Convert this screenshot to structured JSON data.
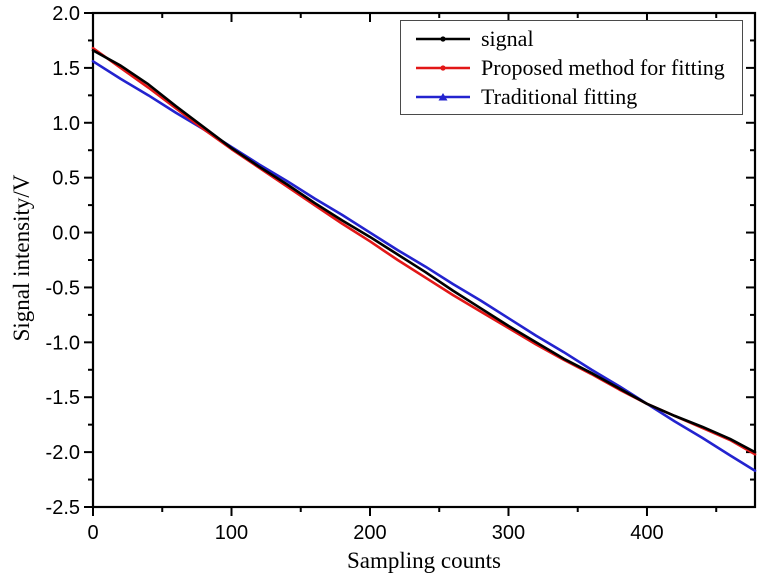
{
  "figure": {
    "background": "#ffffff",
    "axis_color": "#000000",
    "legend_border_color": "#4a4a4a"
  },
  "chart_data": {
    "type": "line",
    "title": "",
    "xlabel": "Sampling counts",
    "ylabel": "Signal intensity/V",
    "xlim": [
      0,
      478
    ],
    "ylim": [
      -2.5,
      2.0
    ],
    "grid": false,
    "legend_position": "top-right",
    "x_major_ticks": [
      0,
      100,
      200,
      300,
      400
    ],
    "x_tick_labels": [
      "0",
      "100",
      "200",
      "300",
      "400"
    ],
    "x_minor_ticks": [
      50,
      150,
      250,
      350,
      450
    ],
    "y_major_ticks": [
      2.0,
      1.5,
      1.0,
      0.5,
      0.0,
      -0.5,
      -1.0,
      -1.5,
      -2.0,
      -2.5
    ],
    "y_tick_labels": [
      "2.0",
      "1.5",
      "1.0",
      "0.5",
      "0.0",
      "-0.5",
      "-1.0",
      "-1.5",
      "-2.0",
      "-2.5"
    ],
    "y_minor_ticks": [
      1.75,
      1.25,
      0.75,
      0.25,
      -0.25,
      -0.75,
      -1.25,
      -1.75,
      -2.25
    ],
    "x": [
      0,
      20,
      40,
      60,
      80,
      100,
      120,
      140,
      160,
      180,
      200,
      220,
      240,
      260,
      280,
      300,
      320,
      340,
      360,
      380,
      400,
      420,
      440,
      460,
      478
    ],
    "series": [
      {
        "name": "signal",
        "color": "#000000",
        "marker": "circle",
        "values": [
          1.66,
          1.52,
          1.35,
          1.15,
          0.96,
          0.77,
          0.6,
          0.44,
          0.27,
          0.11,
          -0.04,
          -0.2,
          -0.36,
          -0.53,
          -0.69,
          -0.85,
          -1.0,
          -1.15,
          -1.28,
          -1.42,
          -1.56,
          -1.67,
          -1.77,
          -1.88,
          -2.0
        ]
      },
      {
        "name": "Proposed method for fitting",
        "color": "#e21717",
        "marker": "circle",
        "values": [
          1.68,
          1.5,
          1.32,
          1.13,
          0.94,
          0.76,
          0.59,
          0.42,
          0.25,
          0.08,
          -0.08,
          -0.25,
          -0.41,
          -0.57,
          -0.72,
          -0.87,
          -1.02,
          -1.16,
          -1.29,
          -1.43,
          -1.56,
          -1.67,
          -1.78,
          -1.89,
          -2.02
        ]
      },
      {
        "name": "Traditional fitting",
        "color": "#2323cf",
        "marker": "triangle",
        "values": [
          1.56,
          1.4,
          1.25,
          1.09,
          0.94,
          0.78,
          0.62,
          0.47,
          0.31,
          0.16,
          0.0,
          -0.16,
          -0.31,
          -0.47,
          -0.62,
          -0.78,
          -0.94,
          -1.09,
          -1.25,
          -1.4,
          -1.56,
          -1.72,
          -1.87,
          -2.03,
          -2.17
        ]
      }
    ]
  }
}
